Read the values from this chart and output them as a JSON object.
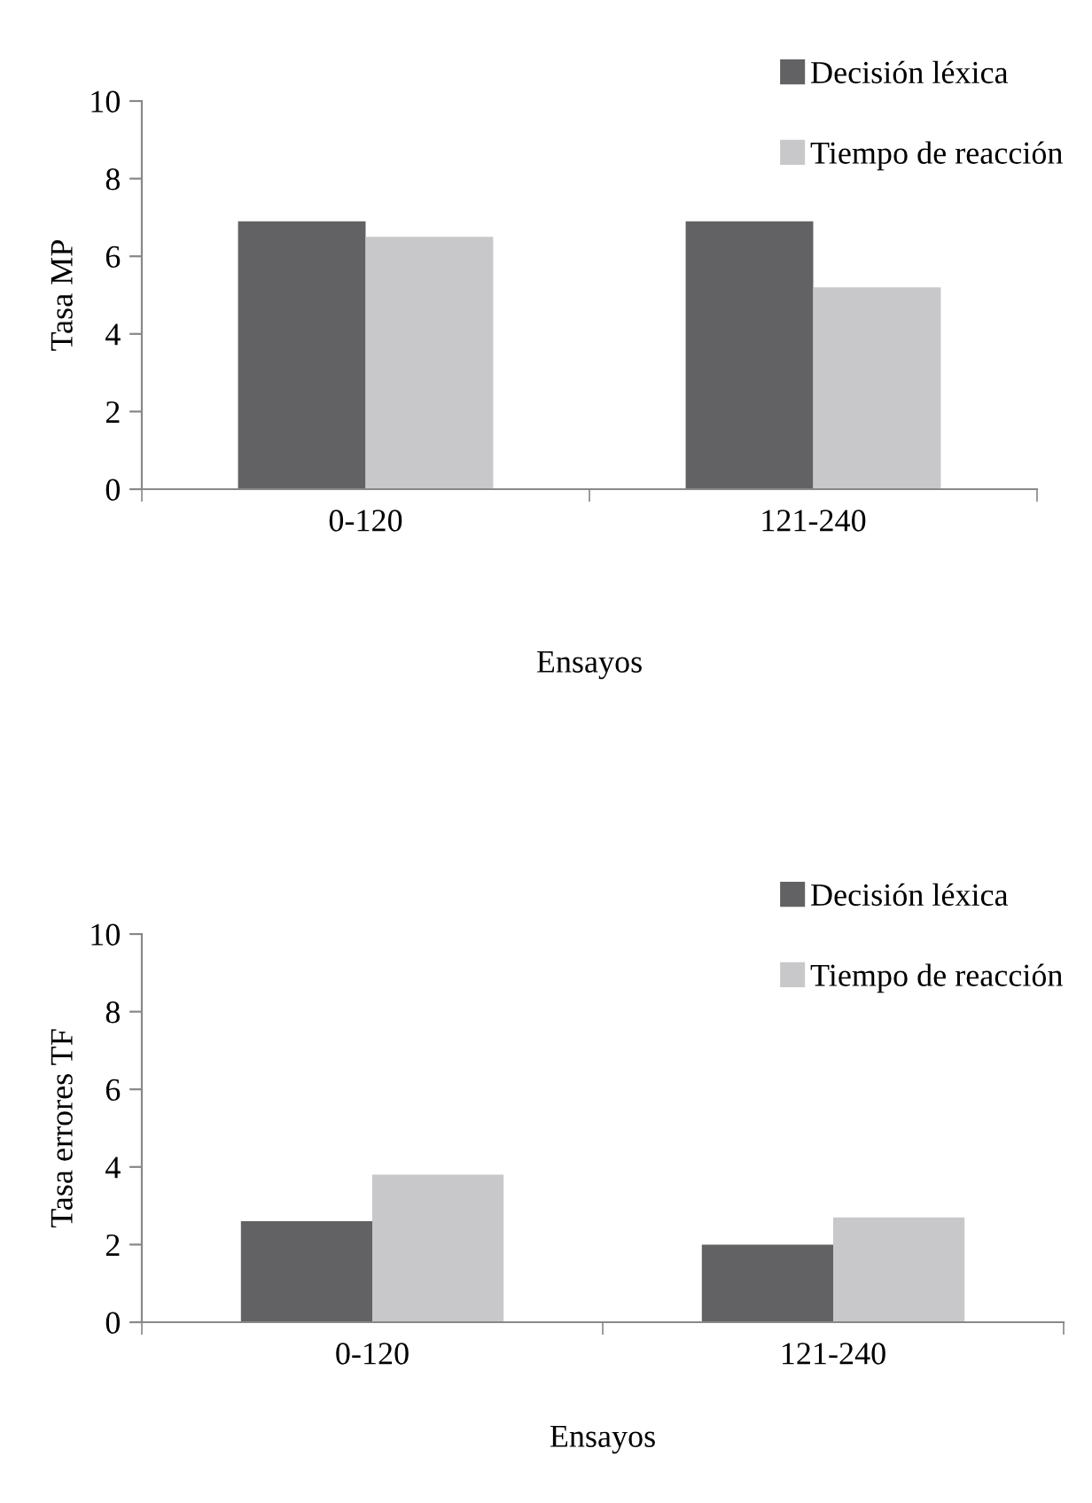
{
  "chart_data": [
    {
      "type": "bar",
      "categories": [
        "0-120",
        "121-240"
      ],
      "xlabel": "Ensayos",
      "ylabel": "Tasa MP",
      "ylim": [
        0,
        10
      ],
      "yticks": [
        0,
        2,
        4,
        6,
        8,
        10
      ],
      "grid": false,
      "legend": "top right",
      "series": [
        {
          "name": "Decisión léxica",
          "color": "#626264",
          "values": [
            6.9,
            6.9
          ]
        },
        {
          "name": "Tiempo de reacción",
          "color": "#c8c8ca",
          "values": [
            6.5,
            5.2
          ]
        }
      ]
    },
    {
      "type": "bar",
      "categories": [
        "0-120",
        "121-240"
      ],
      "xlabel": "Ensayos",
      "ylabel": "Tasa errores TF",
      "ylim": [
        0,
        10
      ],
      "yticks": [
        0,
        2,
        4,
        6,
        8,
        10
      ],
      "grid": false,
      "legend": "top right",
      "series": [
        {
          "name": "Decisión léxica",
          "color": "#626264",
          "values": [
            2.6,
            2.0
          ]
        },
        {
          "name": "Tiempo de reacción",
          "color": "#c8c8ca",
          "values": [
            3.8,
            2.7
          ]
        }
      ]
    }
  ]
}
